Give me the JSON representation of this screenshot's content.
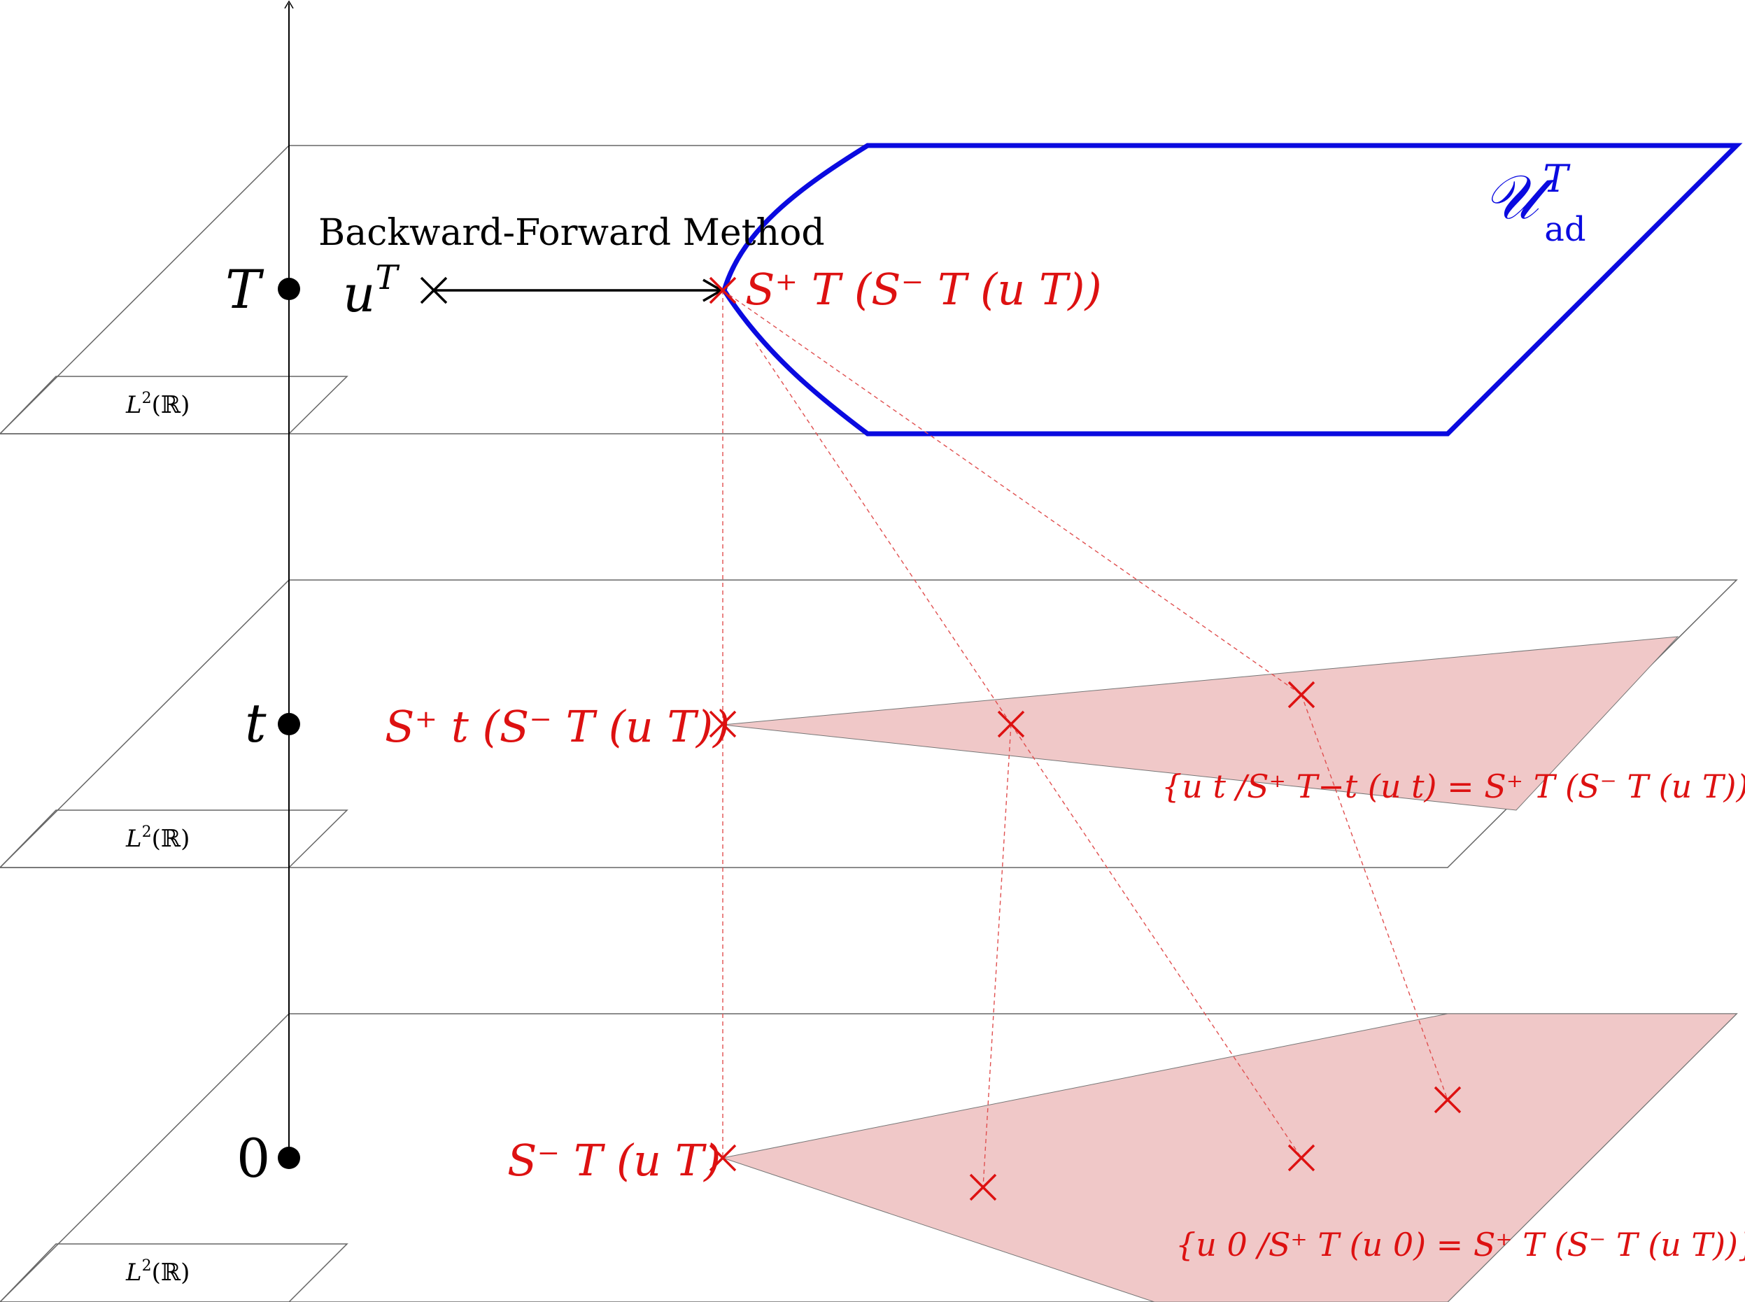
{
  "title": "Backward-Forward Method",
  "time_axis": {
    "levels": [
      {
        "id": "T",
        "label": "T"
      },
      {
        "id": "t",
        "label": "t"
      },
      {
        "id": "zero",
        "label": "0"
      }
    ]
  },
  "space_label": {
    "base": "L",
    "sup": "2",
    "rest": "(ℝ)"
  },
  "admissible_set": {
    "base": "𝒰",
    "sup": "T",
    "sub": "ad"
  },
  "points": {
    "uT": {
      "base": "u",
      "sup": "T"
    },
    "forward_T": "S⁺ T (S⁻ T (u T))",
    "forward_t": "S⁺ t (S⁻ T (u T))",
    "backward_0": "S⁻ T (u T)"
  },
  "sets": {
    "set_t": "{u t /S⁺ T−t (u t) = S⁺ T (S⁻ T (u T))}",
    "set_0": "{u 0 /S⁺ T (u 0) = S⁺ T (S⁻ T (u T))}"
  },
  "colors": {
    "red": "#dd1111",
    "blue": "#0a0ae0",
    "pink_fill": "#f0c8c8",
    "plane": "#666666"
  }
}
